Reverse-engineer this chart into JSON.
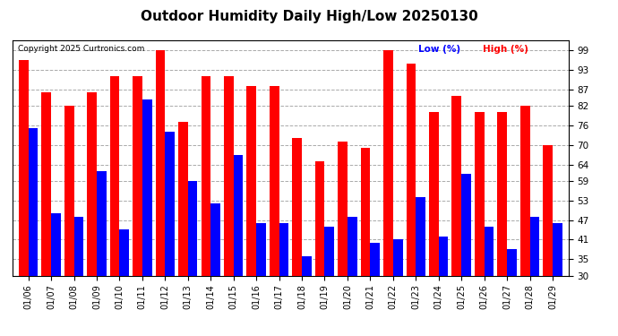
{
  "title": "Outdoor Humidity Daily High/Low 20250130",
  "copyright": "Copyright 2025 Curtronics.com",
  "legend_low": "Low (%)",
  "legend_high": "High (%)",
  "dates": [
    "01/06",
    "01/07",
    "01/08",
    "01/09",
    "01/10",
    "01/11",
    "01/12",
    "01/13",
    "01/14",
    "01/15",
    "01/16",
    "01/17",
    "01/18",
    "01/19",
    "01/20",
    "01/21",
    "01/22",
    "01/23",
    "01/24",
    "01/25",
    "01/26",
    "01/27",
    "01/28",
    "01/29"
  ],
  "high": [
    96,
    86,
    82,
    86,
    91,
    91,
    99,
    77,
    91,
    91,
    88,
    88,
    72,
    65,
    71,
    69,
    99,
    95,
    80,
    85,
    80,
    80,
    82,
    70
  ],
  "low": [
    75,
    49,
    48,
    62,
    44,
    84,
    74,
    59,
    52,
    67,
    46,
    46,
    36,
    45,
    48,
    40,
    41,
    54,
    42,
    61,
    45,
    38,
    48,
    46
  ],
  "high_color": "#ff0000",
  "low_color": "#0000ff",
  "ylim_min": 30,
  "ylim_max": 102,
  "yticks": [
    30,
    35,
    41,
    47,
    53,
    59,
    64,
    70,
    76,
    82,
    87,
    93,
    99
  ],
  "grid_color": "#aaaaaa",
  "background_color": "#ffffff",
  "bar_width": 0.42,
  "figwidth": 6.9,
  "figheight": 3.75,
  "dpi": 100
}
